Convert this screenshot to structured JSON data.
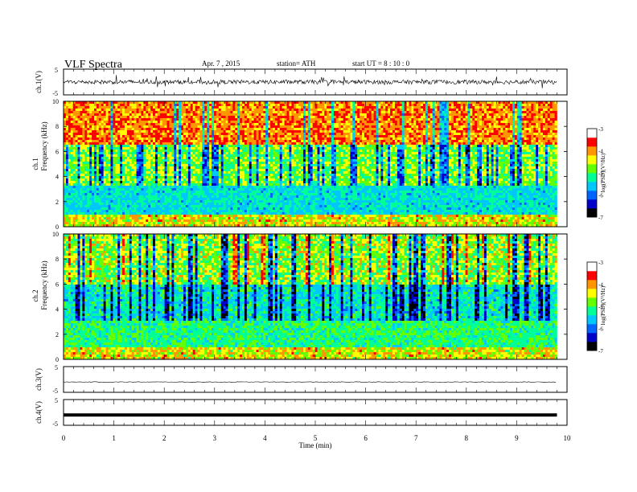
{
  "header": {
    "title": "VLF Spectra",
    "date": "Apr. 7 , 2015",
    "station": "station= ATH",
    "start": "start UT = 8 : 10 : 0"
  },
  "chart_data": [
    {
      "type": "line",
      "name": "ch1-waveform",
      "ylabel": "ch.1(V)",
      "ylim": [
        -5,
        5
      ],
      "yticks": [
        "5",
        "-5"
      ],
      "xlim": [
        0,
        10
      ],
      "description_level": 0,
      "amplitude": "noisy, mostly within ±1 V with spikes to ±2 V"
    },
    {
      "type": "heatmap",
      "name": "ch1-spectrogram",
      "ylabel": "Frequency (kHz)",
      "channel_label": "ch.1",
      "ylim": [
        0,
        10
      ],
      "yticks": [
        "0",
        "2",
        "4",
        "6",
        "8",
        "10"
      ],
      "xlim": [
        0,
        9.8
      ],
      "colorbar": {
        "label": "log(PSD)(V²/Hz)",
        "range": [
          -7,
          -3
        ],
        "ticks": [
          "-3",
          "-4",
          "-5",
          "-6",
          "-7"
        ]
      }
    },
    {
      "type": "heatmap",
      "name": "ch2-spectrogram",
      "ylabel": "Frequency (kHz)",
      "channel_label": "ch.2",
      "ylim": [
        0,
        10
      ],
      "yticks": [
        "0",
        "2",
        "4",
        "6",
        "8",
        "10"
      ],
      "xlim": [
        0,
        9.8
      ],
      "colorbar": {
        "label": "log(PSD)(V²/Hz)",
        "range": [
          -7,
          -3
        ],
        "ticks": [
          "-3",
          "-4",
          "-5",
          "-6",
          "-7"
        ]
      }
    },
    {
      "type": "line",
      "name": "ch3-waveform",
      "ylabel": "ch.3(V)",
      "ylim": [
        -5,
        5
      ],
      "yticks": [
        "5",
        "-5"
      ],
      "level": -1
    },
    {
      "type": "line",
      "name": "ch4-waveform",
      "ylabel": "ch.4(V)",
      "ylim": [
        -5,
        5
      ],
      "yticks": [
        "5",
        "-5"
      ],
      "level": -1
    }
  ],
  "xaxis": {
    "label": "Time (min)",
    "ticks": [
      "0",
      "1",
      "2",
      "3",
      "4",
      "5",
      "6",
      "7",
      "8",
      "9",
      "10"
    ],
    "range": [
      0,
      10
    ]
  },
  "colors": {
    "palette": [
      "#000000",
      "#0000c8",
      "#0064ff",
      "#00c8ff",
      "#00ff96",
      "#64ff00",
      "#ffff00",
      "#ff9600",
      "#ff0000",
      "#ffffff"
    ]
  }
}
